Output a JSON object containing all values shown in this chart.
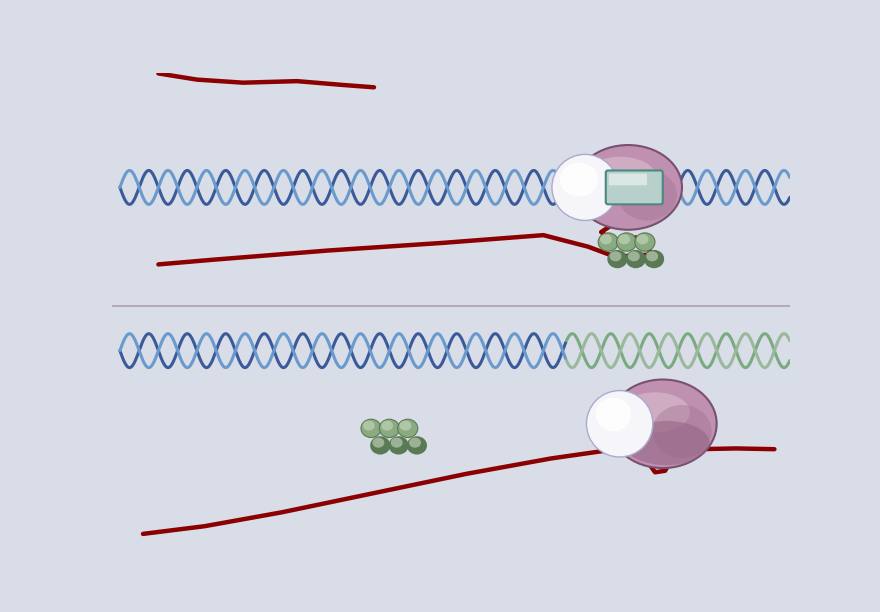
{
  "bg_color": "#d8dde8",
  "divider_color": "#b0a0b0",
  "rna_color": "#8b0000",
  "dna_color1": "#3a5a9a",
  "dna_color2": "#6a9acc",
  "rnap_body": "#c090b0",
  "rnap_light": "#e8d0e0",
  "rnap_dark": "#7a5070",
  "rnap_cap": "#f0f0f8",
  "rho_main": "#8aaa80",
  "rho_light": "#b8ccb0",
  "rho_dark": "#5a7a55",
  "term_color1": "#7aaa80",
  "term_color2": "#9ab89a",
  "window_fill": "#b8d0cc",
  "window_edge": "#4a8880"
}
